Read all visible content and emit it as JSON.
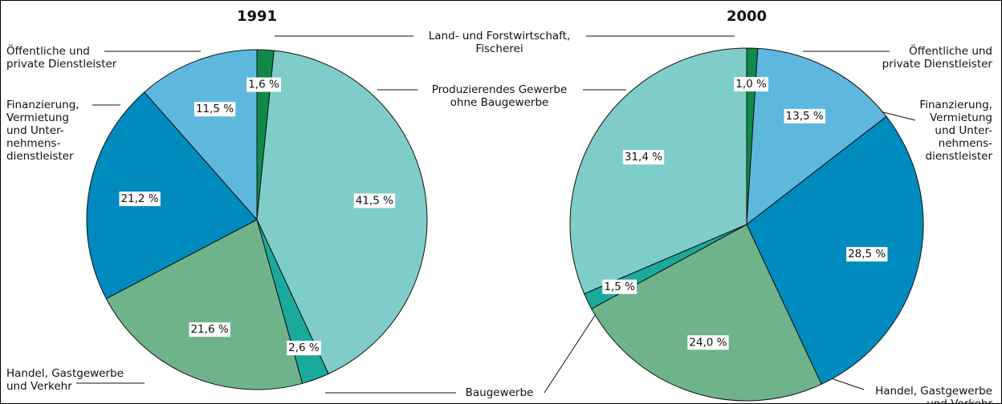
{
  "chart_data": [
    {
      "type": "pie",
      "title": "1991",
      "categories": [
        "Land- und Forstwirtschaft,\nFischerei",
        "Produzierendes Gewerbe\nohne Baugewerbe",
        "Baugewerbe",
        "Handel, Gastgewerbe\nund Verkehr",
        "Finanzierung,\nVermietung\nund Unter-\nnehmens-\ndienstleister",
        "Öffentliche und\nprivate Dienstleister"
      ],
      "values": [
        1.6,
        41.5,
        2.6,
        21.6,
        21.2,
        11.5
      ],
      "value_labels": [
        "1,6 %",
        "41,5 %",
        "2,6 %",
        "21,6 %",
        "21,2 %",
        "11,5 %"
      ],
      "colors": [
        "#0f8a4a",
        "#7ecdc8",
        "#1aaa9c",
        "#6fb38a",
        "#008bbf",
        "#5eb8de"
      ]
    },
    {
      "type": "pie",
      "title": "2000",
      "categories": [
        null,
        "Öffentliche und\nprivate Dienstleister",
        "Finanzierung,\nVermietung\nund Unter-\nnehmens-\ndienstleister",
        "Handel, Gastgewerbe\nund Verkehr",
        null,
        null
      ],
      "values": [
        1.0,
        13.5,
        28.5,
        24.0,
        1.5,
        31.4
      ],
      "value_labels": [
        "1,0 %",
        "13,5 %",
        "28,5 %",
        "24,0 %",
        "1,5 %",
        "31,4 %"
      ],
      "colors": [
        "#0f8a4a",
        "#5eb8de",
        "#008bbf",
        "#6fb38a",
        "#1aaa9c",
        "#7ecdc8"
      ]
    }
  ]
}
